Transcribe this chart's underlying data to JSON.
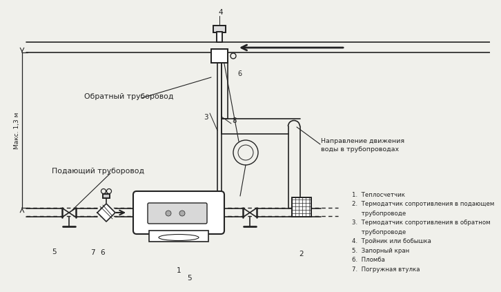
{
  "bg_color": "#f0f0eb",
  "line_color": "#222222",
  "legend_items": [
    "1.  Теплосчетчик",
    "2.  Термодатчик сопротивления в подающем",
    "     трубопроводе",
    "3.  Термодатчик сопротивления в обратном",
    "     трубопроводе",
    "4.  Тройник или бобышка",
    "5.  Запорный кран",
    "6.  Пломба",
    "7.  Погружная втулка"
  ],
  "label_obratny": "Обратный труборовод",
  "label_podayushy": "Подающий труборовод",
  "label_direction1": "Направление движения",
  "label_direction2": "воды в трубопроводах",
  "label_maks": "Макс. 1,3 м"
}
